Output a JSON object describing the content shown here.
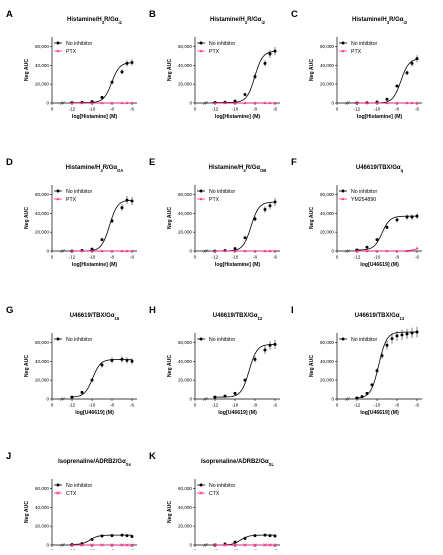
{
  "figure": {
    "colors": {
      "no_inhibitor": "#000000",
      "inhibitor": "#ff2d92"
    }
  },
  "chart_data": [
    {
      "panel": "A",
      "type": "line",
      "title": "Histamine/H3R/Gαi1",
      "title_parts": {
        "base": "Histamine/H",
        "sub1": "3",
        "mid": "R/Gα",
        "sub2": "i1"
      },
      "xlabel": "log[Histamine] (M)",
      "ylabel": "Neg AUC",
      "xlim": [
        -14,
        -5.5
      ],
      "ylim": [
        0,
        70000
      ],
      "xticks": [
        "0",
        "-12",
        "-10",
        "-8",
        "-6"
      ],
      "yticks": [
        "0",
        "20,000",
        "40,000",
        "60,000"
      ],
      "series": [
        {
          "name": "No inhibitor",
          "color": "#000000",
          "marker": "circle",
          "x": [
            -12,
            -11,
            -10,
            -9,
            -8,
            -7,
            -6.5,
            -6
          ],
          "y": [
            400,
            600,
            1500,
            6000,
            22000,
            33000,
            42000,
            43000
          ]
        },
        {
          "name": "PTX",
          "color": "#ff2d92",
          "marker": "triangle",
          "x": [
            -12,
            -11,
            -10,
            -9,
            -8,
            -7,
            -6.5,
            -6
          ],
          "y": [
            0,
            0,
            0,
            0,
            0,
            0,
            0,
            0
          ]
        }
      ]
    },
    {
      "panel": "B",
      "type": "line",
      "title": "Histamine/H3R/Gαi2",
      "title_parts": {
        "base": "Histamine/H",
        "sub1": "3",
        "mid": "R/Gα",
        "sub2": "i2"
      },
      "xlabel": "log[Histamine] (M)",
      "ylabel": "Neg AUC",
      "xlim": [
        -14,
        -5.5
      ],
      "ylim": [
        0,
        70000
      ],
      "xticks": [
        "0",
        "-12",
        "-10",
        "-8",
        "-6"
      ],
      "yticks": [
        "0",
        "20,000",
        "40,000",
        "60,000"
      ],
      "series": [
        {
          "name": "No inhibitor",
          "color": "#000000",
          "marker": "circle",
          "x": [
            -12,
            -11,
            -10,
            -9,
            -8,
            -7,
            -6.5,
            -6
          ],
          "y": [
            500,
            800,
            2000,
            9000,
            28000,
            42000,
            52000,
            55000
          ]
        },
        {
          "name": "PTX",
          "color": "#ff2d92",
          "marker": "triangle",
          "x": [
            -12,
            -11,
            -10,
            -9,
            -8,
            -7,
            -6.5,
            -6
          ],
          "y": [
            0,
            0,
            0,
            0,
            0,
            0,
            0,
            0
          ]
        }
      ]
    },
    {
      "panel": "C",
      "type": "line",
      "title": "Histamine/H3R/Gαi3",
      "title_parts": {
        "base": "Histamine/H",
        "sub1": "3",
        "mid": "R/Gα",
        "sub2": "i3"
      },
      "xlabel": "log[Histamine] (M)",
      "ylabel": "Neg AUC",
      "xlim": [
        -14,
        -5.5
      ],
      "ylim": [
        0,
        70000
      ],
      "xticks": [
        "0",
        "-12",
        "-10",
        "-8",
        "-6"
      ],
      "yticks": [
        "0",
        "20,000",
        "40,000",
        "60,000"
      ],
      "series": [
        {
          "name": "No inhibitor",
          "color": "#000000",
          "marker": "circle",
          "x": [
            -12,
            -11,
            -10,
            -9,
            -8,
            -7,
            -6.5,
            -6
          ],
          "y": [
            0,
            300,
            1000,
            4000,
            18000,
            32000,
            42000,
            47000
          ]
        },
        {
          "name": "PTX",
          "color": "#ff2d92",
          "marker": "triangle",
          "x": [
            -12,
            -11,
            -10,
            -9,
            -8,
            -7,
            -6.5,
            -6
          ],
          "y": [
            0,
            0,
            0,
            0,
            0,
            0,
            0,
            0
          ]
        }
      ]
    },
    {
      "panel": "D",
      "type": "line",
      "title": "Histamine/H3R/GαOA",
      "title_parts": {
        "base": "Histamine/H",
        "sub1": "3",
        "mid": "R/Gα",
        "sub2": "OA"
      },
      "xlabel": "log[Histamine] (M)",
      "ylabel": "Neg AUC",
      "xlim": [
        -14,
        -5.5
      ],
      "ylim": [
        0,
        70000
      ],
      "xticks": [
        "0",
        "-12",
        "-10",
        "-8",
        "-6"
      ],
      "yticks": [
        "0",
        "20,000",
        "40,000",
        "60,000"
      ],
      "series": [
        {
          "name": "No inhibitor",
          "color": "#000000",
          "marker": "circle",
          "x": [
            -12,
            -11,
            -10,
            -9,
            -8,
            -7,
            -6.5,
            -6
          ],
          "y": [
            0,
            500,
            2000,
            12000,
            32000,
            46000,
            54000,
            53000
          ]
        },
        {
          "name": "PTX",
          "color": "#ff2d92",
          "marker": "triangle",
          "x": [
            -12,
            -11,
            -10,
            -9,
            -8,
            -7,
            -6.5,
            -6
          ],
          "y": [
            0,
            0,
            0,
            0,
            0,
            0,
            0,
            0
          ]
        }
      ]
    },
    {
      "panel": "E",
      "type": "line",
      "title": "Histamine/H3R/GαOB",
      "title_parts": {
        "base": "Histamine/H",
        "sub1": "3",
        "mid": "R/Gα",
        "sub2": "OB"
      },
      "xlabel": "log[Histamine] (M)",
      "ylabel": "Neg AUC",
      "xlim": [
        -14,
        -5.5
      ],
      "ylim": [
        0,
        70000
      ],
      "xticks": [
        "0",
        "-12",
        "-10",
        "-8",
        "-6"
      ],
      "yticks": [
        "0",
        "20,000",
        "40,000",
        "60,000"
      ],
      "series": [
        {
          "name": "No inhibitor",
          "color": "#000000",
          "marker": "circle",
          "x": [
            -12,
            -11,
            -10,
            -9,
            -8,
            -7,
            -6.5,
            -6
          ],
          "y": [
            0,
            500,
            2500,
            14000,
            34000,
            44000,
            48000,
            52000
          ]
        },
        {
          "name": "PTX",
          "color": "#ff2d92",
          "marker": "triangle",
          "x": [
            -12,
            -11,
            -10,
            -9,
            -8,
            -7,
            -6.5,
            -6
          ],
          "y": [
            0,
            0,
            0,
            0,
            0,
            0,
            0,
            0
          ]
        }
      ]
    },
    {
      "panel": "F",
      "type": "line",
      "title": "U46619/TBX/Gαq",
      "title_parts": {
        "base": "U46619/TBX/Gα",
        "sub2": "q"
      },
      "xlabel": "log[U46619] (M)",
      "ylabel": "Neg AUC",
      "xlim": [
        -14,
        -5.5
      ],
      "ylim": [
        0,
        70000
      ],
      "xticks": [
        "0",
        "-12",
        "-10",
        "-8",
        "-6"
      ],
      "yticks": [
        "0",
        "20,000",
        "40,000",
        "60,000"
      ],
      "series": [
        {
          "name": "No inhibitor",
          "color": "#000000",
          "marker": "circle",
          "x": [
            -12,
            -11,
            -10,
            -9,
            -8,
            -7,
            -6.5,
            -6
          ],
          "y": [
            1000,
            4000,
            12000,
            25000,
            33000,
            36000,
            36000,
            37000
          ]
        },
        {
          "name": "YM254890",
          "color": "#ff2d92",
          "marker": "triangle",
          "x": [
            -12,
            -11,
            -10,
            -9,
            -8,
            -7,
            -6.5,
            -6
          ],
          "y": [
            0,
            0,
            0,
            0,
            0,
            0,
            500,
            3000
          ]
        }
      ]
    },
    {
      "panel": "G",
      "type": "line",
      "title": "U46619/TBX/Gα15",
      "title_parts": {
        "base": "U46619/TBX/Gα",
        "sub2": "15"
      },
      "xlabel": "log[U46619] (M)",
      "ylabel": "Neg AUC",
      "xlim": [
        -14,
        -5.5
      ],
      "ylim": [
        0,
        70000
      ],
      "xticks": [
        "0",
        "-12",
        "-10",
        "-8",
        "-6"
      ],
      "yticks": [
        "0",
        "20,000",
        "40,000",
        "60,000"
      ],
      "series": [
        {
          "name": "No inhibitor",
          "color": "#000000",
          "marker": "circle",
          "x": [
            -12,
            -11,
            -10,
            -9,
            -8,
            -7,
            -6.5,
            -6
          ],
          "y": [
            2000,
            7000,
            20000,
            36000,
            41000,
            42000,
            41000,
            40000
          ]
        }
      ]
    },
    {
      "panel": "H",
      "type": "line",
      "title": "U46619/TBX/Gα12",
      "title_parts": {
        "base": "U46619/TBX/Gα",
        "sub2": "12"
      },
      "xlabel": "log[U46619] (M)",
      "ylabel": "Neg AUC",
      "xlim": [
        -14,
        -5.5
      ],
      "ylim": [
        0,
        70000
      ],
      "xticks": [
        "0",
        "-12",
        "-10",
        "-8",
        "-6"
      ],
      "yticks": [
        "0",
        "20,000",
        "40,000",
        "60,000"
      ],
      "series": [
        {
          "name": "No inhibitor",
          "color": "#000000",
          "marker": "circle",
          "x": [
            -12,
            -11,
            -10,
            -9,
            -8,
            -7,
            -6.5,
            -6
          ],
          "y": [
            2000,
            3000,
            6000,
            20000,
            42000,
            52000,
            57000,
            58000
          ]
        }
      ]
    },
    {
      "panel": "I",
      "type": "line",
      "title": "U46619/TBX/Gα13",
      "title_parts": {
        "base": "U46619/TBX/Gα",
        "sub2": "13"
      },
      "xlabel": "log[U46619] (M)",
      "ylabel": "Neg AUC",
      "xlim": [
        -14,
        -5.5
      ],
      "ylim": [
        0,
        70000
      ],
      "xticks": [
        "0",
        "-12",
        "-10",
        "-8",
        "-6"
      ],
      "yticks": [
        "0",
        "20,000",
        "40,000",
        "60,000"
      ],
      "series": [
        {
          "name": "No inhibitor",
          "color": "#000000",
          "marker": "circle",
          "x": [
            -12,
            -11.5,
            -11,
            -10.5,
            -10,
            -9.5,
            -9,
            -8.5,
            -8,
            -7.5,
            -7,
            -6.5,
            -6
          ],
          "y": [
            1000,
            2500,
            6000,
            15000,
            30000,
            46000,
            57000,
            64000,
            67000,
            68000,
            69000,
            70000,
            71000
          ]
        }
      ]
    },
    {
      "panel": "J",
      "type": "line",
      "title": "Isoprenaline/ADRB2/GαSs",
      "title_parts": {
        "base": "Isoprenaline/ADRB2/Gα",
        "sub2": "Ss"
      },
      "xlabel": "log[Isoprenaline] (M)",
      "ylabel": "Neg AUC",
      "xlim": [
        -14,
        -5.5
      ],
      "ylim": [
        0,
        70000
      ],
      "xticks": [
        "0",
        "-12",
        "-10",
        "-8",
        "-6"
      ],
      "yticks": [
        "0",
        "20,000",
        "40,000",
        "60,000"
      ],
      "series": [
        {
          "name": "No inhibitor",
          "color": "#000000",
          "marker": "circle",
          "x": [
            -12,
            -11,
            -10,
            -9,
            -8,
            -7,
            -6.5,
            -6
          ],
          "y": [
            500,
            1500,
            6000,
            9500,
            10000,
            10500,
            10000,
            9000
          ]
        },
        {
          "name": "CTX",
          "color": "#ff2d92",
          "marker": "cross",
          "x": [
            -12,
            -11,
            -10,
            -9,
            -8,
            -7,
            -6.5,
            -6
          ],
          "y": [
            0,
            0,
            0,
            0,
            0,
            0,
            0,
            0
          ]
        }
      ]
    },
    {
      "panel": "K",
      "type": "line",
      "title": "Isoprenaline/ADRB2/GαSL",
      "title_parts": {
        "base": "Isoprenaline/ADRB2/Gα",
        "sub2": "SL"
      },
      "xlabel": "log[Isoprenaline] (M)",
      "ylabel": "Neg AUC",
      "xlim": [
        -14,
        -5.5
      ],
      "ylim": [
        0,
        70000
      ],
      "xticks": [
        "0",
        "-12",
        "-10",
        "-8",
        "-6"
      ],
      "yticks": [
        "0",
        "20,000",
        "40,000",
        "60,000"
      ],
      "series": [
        {
          "name": "No inhibitor",
          "color": "#000000",
          "marker": "circle",
          "x": [
            -12,
            -11,
            -10,
            -9,
            -8,
            -7,
            -6.5,
            -6
          ],
          "y": [
            0,
            1000,
            3000,
            7000,
            10000,
            10500,
            10000,
            9500
          ]
        },
        {
          "name": "CTX",
          "color": "#ff2d92",
          "marker": "cross",
          "x": [
            -12,
            -11,
            -10,
            -9,
            -8,
            -7,
            -6.5,
            -6
          ],
          "y": [
            0,
            0,
            0,
            0,
            0,
            0,
            0,
            0
          ]
        }
      ]
    }
  ]
}
